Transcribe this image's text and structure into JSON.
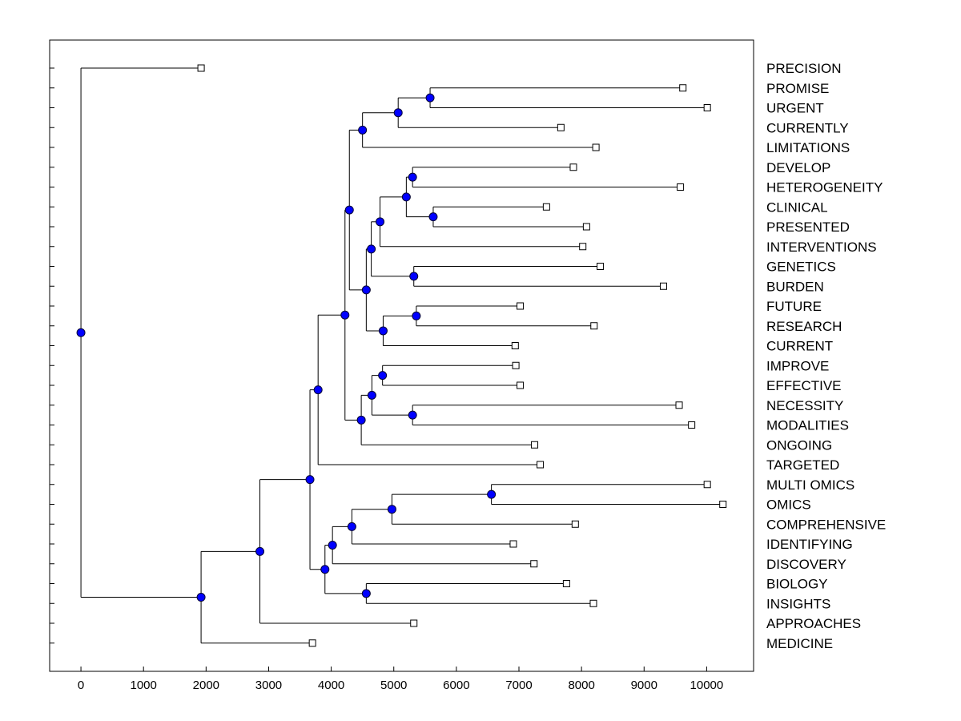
{
  "chart_data": {
    "type": "dendrogram",
    "title": "",
    "xlabel": "",
    "ylabel": "",
    "xlim": [
      -500,
      10750
    ],
    "x_ticks": [
      0,
      1000,
      2000,
      3000,
      4000,
      5000,
      6000,
      7000,
      8000,
      9000,
      10000
    ],
    "x_tick_labels": [
      "0",
      "1000",
      "2000",
      "3000",
      "4000",
      "5000",
      "6000",
      "7000",
      "8000",
      "9000",
      "10000"
    ],
    "colors": {
      "node_fill": "#0000ff",
      "node_stroke": "#000033",
      "line": "#000000",
      "leaf_fill": "#ffffff"
    },
    "leaves": [
      {
        "label": "PRECISION",
        "x": 1920
      },
      {
        "label": "PROMISE",
        "x": 9620
      },
      {
        "label": "URGENT",
        "x": 10010
      },
      {
        "label": "CURRENTLY",
        "x": 7670
      },
      {
        "label": "LIMITATIONS",
        "x": 8230
      },
      {
        "label": "DEVELOP",
        "x": 7870
      },
      {
        "label": "HETEROGENEITY",
        "x": 9580
      },
      {
        "label": "CLINICAL",
        "x": 7440
      },
      {
        "label": "PRESENTED",
        "x": 8080
      },
      {
        "label": "INTERVENTIONS",
        "x": 8020
      },
      {
        "label": "GENETICS",
        "x": 8300
      },
      {
        "label": "BURDEN",
        "x": 9310
      },
      {
        "label": "FUTURE",
        "x": 7020
      },
      {
        "label": "RESEARCH",
        "x": 8200
      },
      {
        "label": "CURRENT",
        "x": 6940
      },
      {
        "label": "IMPROVE",
        "x": 6950
      },
      {
        "label": "EFFECTIVE",
        "x": 7020
      },
      {
        "label": "NECESSITY",
        "x": 9560
      },
      {
        "label": "MODALITIES",
        "x": 9760
      },
      {
        "label": "ONGOING",
        "x": 7250
      },
      {
        "label": "TARGETED",
        "x": 7340
      },
      {
        "label": "MULTI OMICS",
        "x": 10010
      },
      {
        "label": "OMICS",
        "x": 10260
      },
      {
        "label": "COMPREHENSIVE",
        "x": 7900
      },
      {
        "label": "IDENTIFYING",
        "x": 6910
      },
      {
        "label": "DISCOVERY",
        "x": 7240
      },
      {
        "label": "BIOLOGY",
        "x": 7760
      },
      {
        "label": "INSIGHTS",
        "x": 8190
      },
      {
        "label": "APPROACHES",
        "x": 5320
      },
      {
        "label": "MEDICINE",
        "x": 3700
      }
    ],
    "merges": [
      {
        "id": "n1",
        "x": 5580,
        "children": [
          "L1",
          "L2"
        ]
      },
      {
        "id": "n2",
        "x": 5070,
        "children": [
          "n1",
          "L3"
        ]
      },
      {
        "id": "n3",
        "x": 4500,
        "children": [
          "n2",
          "L4"
        ]
      },
      {
        "id": "n4",
        "x": 5300,
        "children": [
          "L5",
          "L6"
        ]
      },
      {
        "id": "n5",
        "x": 5630,
        "children": [
          "L7",
          "L8"
        ]
      },
      {
        "id": "n6",
        "x": 5200,
        "children": [
          "n4",
          "n5"
        ]
      },
      {
        "id": "n7",
        "x": 4780,
        "children": [
          "n6",
          "L9"
        ]
      },
      {
        "id": "n8",
        "x": 5320,
        "children": [
          "L10",
          "L11"
        ]
      },
      {
        "id": "n9",
        "x": 4640,
        "children": [
          "n7",
          "n8"
        ]
      },
      {
        "id": "n10",
        "x": 5360,
        "children": [
          "L12",
          "L13"
        ]
      },
      {
        "id": "n11",
        "x": 4830,
        "children": [
          "n10",
          "L14"
        ]
      },
      {
        "id": "n12",
        "x": 4560,
        "children": [
          "n9",
          "n11"
        ]
      },
      {
        "id": "n13",
        "x": 4290,
        "children": [
          "n3",
          "n12"
        ]
      },
      {
        "id": "n14",
        "x": 4820,
        "children": [
          "L15",
          "L16"
        ]
      },
      {
        "id": "n15",
        "x": 5300,
        "children": [
          "L17",
          "L18"
        ]
      },
      {
        "id": "n16",
        "x": 4650,
        "children": [
          "n14",
          "n15"
        ]
      },
      {
        "id": "n17",
        "x": 4480,
        "children": [
          "n16",
          "L19"
        ]
      },
      {
        "id": "n18",
        "x": 4220,
        "children": [
          "n13",
          "n17"
        ]
      },
      {
        "id": "n19",
        "x": 3790,
        "children": [
          "n18",
          "L20"
        ]
      },
      {
        "id": "n20",
        "x": 6560,
        "children": [
          "L21",
          "L22"
        ]
      },
      {
        "id": "n21",
        "x": 4970,
        "children": [
          "n20",
          "L23"
        ]
      },
      {
        "id": "n22",
        "x": 4330,
        "children": [
          "n21",
          "L24"
        ]
      },
      {
        "id": "n23",
        "x": 4020,
        "children": [
          "n22",
          "L25"
        ]
      },
      {
        "id": "n24",
        "x": 4560,
        "children": [
          "L26",
          "L27"
        ]
      },
      {
        "id": "n25",
        "x": 3900,
        "children": [
          "n23",
          "n24"
        ]
      },
      {
        "id": "n26",
        "x": 3660,
        "children": [
          "n19",
          "n25"
        ]
      },
      {
        "id": "n27",
        "x": 2860,
        "children": [
          "n26",
          "L28"
        ]
      },
      {
        "id": "n28",
        "x": 1920,
        "children": [
          "n27",
          "L29"
        ]
      },
      {
        "id": "n29",
        "x": 0,
        "children": [
          "L0",
          "n28"
        ]
      }
    ]
  }
}
